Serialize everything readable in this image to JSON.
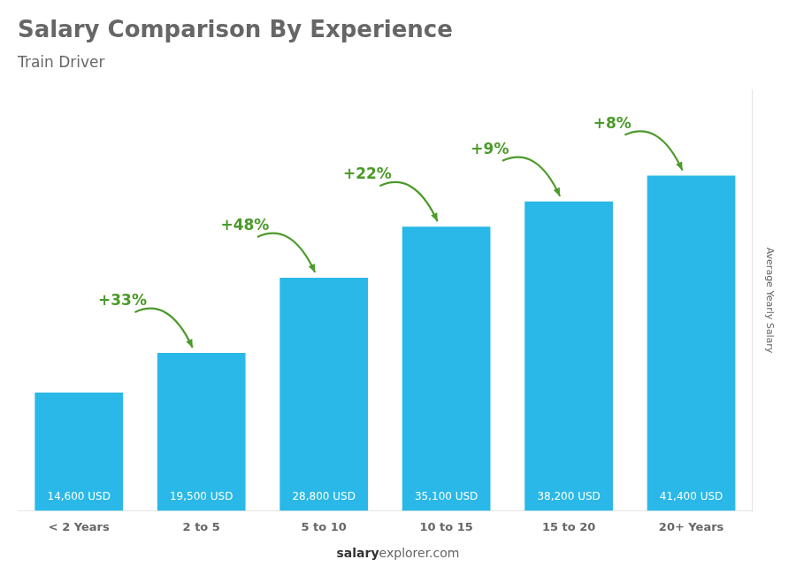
{
  "chart_data": {
    "type": "bar",
    "title": "Salary Comparison By Experience",
    "subtitle": "Train Driver",
    "categories": [
      "< 2 Years",
      "2 to 5",
      "5 to 10",
      "10 to 15",
      "15 to 20",
      "20+ Years"
    ],
    "values": [
      14600,
      19500,
      28800,
      35100,
      38200,
      41400
    ],
    "value_labels": [
      "14,600 USD",
      "19,500 USD",
      "28,800 USD",
      "35,100 USD",
      "38,200 USD",
      "41,400 USD"
    ],
    "data_labels": true,
    "color": "#29b8e8",
    "ylabel": "Average Yearly Salary",
    "ylim": [
      0,
      52000
    ],
    "tick_labels": "x",
    "grid": false,
    "annotations": [
      "+33%",
      "+48%",
      "+22%",
      "+9%",
      "+8%"
    ],
    "footer": [
      "salary",
      "explorer.com"
    ]
  }
}
